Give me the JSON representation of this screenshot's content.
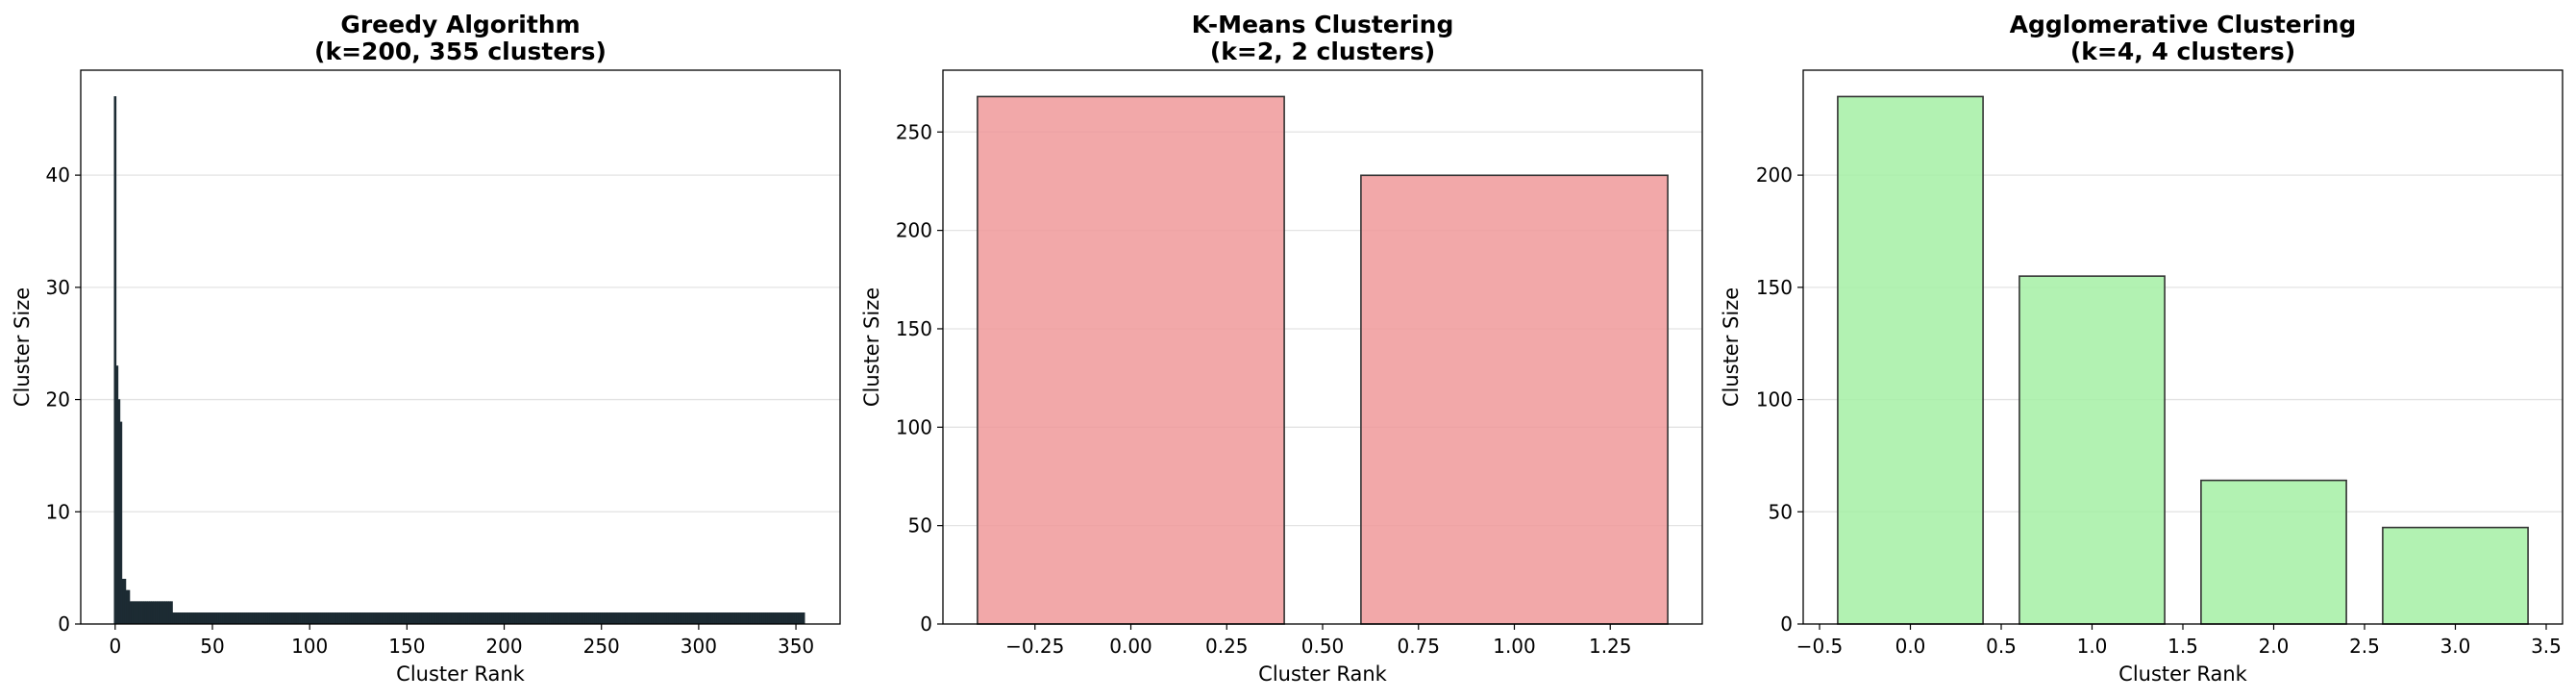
{
  "chart_data": [
    {
      "type": "bar",
      "title_line1": "Greedy Algorithm",
      "title_line2": "(k=200, 355 clusters)",
      "xlabel": "Cluster Rank",
      "ylabel": "Cluster Size",
      "xlim": [
        -17.7,
        372.7
      ],
      "ylim": [
        0,
        49.35
      ],
      "xticks": [
        0,
        50,
        100,
        150,
        200,
        250,
        300,
        350
      ],
      "xtick_labels": [
        "0",
        "50",
        "100",
        "150",
        "200",
        "250",
        "300",
        "350"
      ],
      "yticks": [
        0,
        10,
        20,
        30,
        40
      ],
      "ytick_labels": [
        "0",
        "10",
        "20",
        "30",
        "40"
      ],
      "grid": "y",
      "bar_color": "#1c2b33",
      "value_runs": [
        {
          "from": 0,
          "to": 0,
          "value": 47
        },
        {
          "from": 1,
          "to": 1,
          "value": 23
        },
        {
          "from": 2,
          "to": 2,
          "value": 20
        },
        {
          "from": 3,
          "to": 3,
          "value": 18
        },
        {
          "from": 4,
          "to": 5,
          "value": 4
        },
        {
          "from": 6,
          "to": 7,
          "value": 3
        },
        {
          "from": 8,
          "to": 29,
          "value": 2
        },
        {
          "from": 30,
          "to": 354,
          "value": 1
        }
      ]
    },
    {
      "type": "bar",
      "title_line1": "K-Means Clustering",
      "title_line2": "(k=2, 2 clusters)",
      "xlabel": "Cluster Rank",
      "ylabel": "Cluster Size",
      "xlim": [
        -0.49,
        1.49
      ],
      "ylim": [
        0,
        281.4
      ],
      "categories": [
        0,
        1
      ],
      "values": [
        268,
        228
      ],
      "xticks": [
        -0.25,
        0,
        0.25,
        0.5,
        0.75,
        1.0,
        1.25
      ],
      "xtick_labels": [
        "−0.25",
        "0.00",
        "0.25",
        "0.50",
        "0.75",
        "1.00",
        "1.25"
      ],
      "yticks": [
        0,
        50,
        100,
        150,
        200,
        250
      ],
      "ytick_labels": [
        "0",
        "50",
        "100",
        "150",
        "200",
        "250"
      ],
      "grid": "y",
      "bar_color": "#f0999a"
    },
    {
      "type": "bar",
      "title_line1": "Agglomerative Clustering",
      "title_line2": "(k=4, 4 clusters)",
      "xlabel": "Cluster Rank",
      "ylabel": "Cluster Size",
      "xlim": [
        -0.59,
        3.59
      ],
      "ylim": [
        0,
        246.75
      ],
      "categories": [
        0,
        1,
        2,
        3
      ],
      "values": [
        235,
        155,
        64,
        43
      ],
      "xticks": [
        -0.5,
        0,
        0.5,
        1.0,
        1.5,
        2.0,
        2.5,
        3.0,
        3.5
      ],
      "xtick_labels": [
        "−0.5",
        "0.0",
        "0.5",
        "1.0",
        "1.5",
        "2.0",
        "2.5",
        "3.0",
        "3.5"
      ],
      "yticks": [
        0,
        50,
        100,
        150,
        200
      ],
      "ytick_labels": [
        "0",
        "50",
        "100",
        "150",
        "200"
      ],
      "grid": "y",
      "bar_color": "#a5f0a5"
    }
  ]
}
